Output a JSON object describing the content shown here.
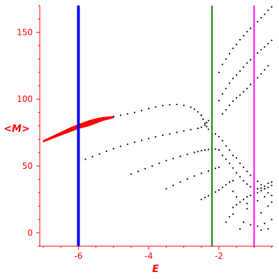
{
  "chart_data": {
    "type": "scatter",
    "xlabel": "E",
    "ylabel": "<M>",
    "xlim": [
      -7.1,
      -0.45
    ],
    "ylim": [
      -10,
      170
    ],
    "x_ticks": [
      {
        "value": -6,
        "label": "-6"
      },
      {
        "value": -4,
        "label": "-4"
      },
      {
        "value": -2,
        "label": "-2"
      }
    ],
    "y_ticks": [
      {
        "value": 0,
        "label": "0"
      },
      {
        "value": 50,
        "label": "50"
      },
      {
        "value": 100,
        "label": "100"
      },
      {
        "value": 150,
        "label": "150"
      }
    ],
    "colors": {
      "axis": "#ff0000",
      "points": "#000000",
      "dense_band": "#ff0000",
      "line_1": "#0000ff",
      "line_2": "#008000",
      "line_3": "#ff00ff"
    },
    "vertical_lines": [
      {
        "x": -6.0,
        "color": "#0000ff",
        "width": 4
      },
      {
        "x": -2.2,
        "color": "#008000",
        "width": 2
      },
      {
        "x": -1.0,
        "color": "#ff00ff",
        "width": 2
      }
    ],
    "dense_band": {
      "color": "#ff0000",
      "upper": [
        [
          -7.0,
          69
        ],
        [
          -6.6,
          74
        ],
        [
          -6.2,
          79
        ],
        [
          -6.0,
          81
        ],
        [
          -5.7,
          84
        ],
        [
          -5.4,
          86
        ],
        [
          -5.1,
          87
        ],
        [
          -5.0,
          87
        ]
      ],
      "lower": [
        [
          -5.0,
          86
        ],
        [
          -5.3,
          84
        ],
        [
          -5.7,
          80
        ],
        [
          -6.0,
          78
        ],
        [
          -6.3,
          75
        ],
        [
          -6.6,
          72
        ],
        [
          -7.0,
          68
        ]
      ]
    },
    "series": [
      {
        "color": "#000000",
        "points": [
          [
            -5.0,
            87
          ],
          [
            -4.8,
            88
          ],
          [
            -4.6,
            89
          ],
          [
            -4.4,
            90
          ],
          [
            -4.2,
            91.5
          ],
          [
            -4.0,
            93
          ],
          [
            -3.8,
            94.2
          ],
          [
            -3.6,
            95.2
          ],
          [
            -3.4,
            95.8
          ],
          [
            -3.2,
            96
          ],
          [
            -3.0,
            95.3
          ],
          [
            -2.8,
            94
          ],
          [
            -2.7,
            92.5
          ],
          [
            -2.6,
            90.5
          ],
          [
            -2.5,
            88
          ],
          [
            -2.45,
            85
          ],
          [
            -2.4,
            82
          ],
          [
            -2.35,
            79.5
          ],
          [
            -2.3,
            77.5
          ]
        ]
      },
      {
        "color": "#000000",
        "points": [
          [
            -5.8,
            55
          ],
          [
            -5.6,
            57
          ],
          [
            -5.4,
            59
          ],
          [
            -5.2,
            61
          ],
          [
            -5.0,
            63
          ],
          [
            -4.8,
            64.7
          ],
          [
            -4.6,
            66.3
          ],
          [
            -4.4,
            67.8
          ],
          [
            -4.2,
            69.2
          ],
          [
            -4.0,
            70.5
          ],
          [
            -3.8,
            71.8
          ],
          [
            -3.6,
            73
          ],
          [
            -3.4,
            74.1
          ],
          [
            -3.2,
            75.2
          ],
          [
            -3.0,
            76.2
          ],
          [
            -2.8,
            77.2
          ],
          [
            -2.6,
            78.2
          ],
          [
            -2.5,
            79
          ],
          [
            -2.4,
            80.5
          ],
          [
            -2.35,
            82.5
          ]
        ]
      },
      {
        "color": "#000000",
        "points": [
          [
            -4.5,
            44
          ],
          [
            -4.3,
            46
          ],
          [
            -4.1,
            48
          ],
          [
            -3.9,
            50
          ],
          [
            -3.7,
            52
          ],
          [
            -3.5,
            54
          ],
          [
            -3.3,
            55.6
          ],
          [
            -3.1,
            57.2
          ],
          [
            -2.9,
            58.7
          ],
          [
            -2.7,
            60.1
          ],
          [
            -2.6,
            60.8
          ],
          [
            -2.5,
            61.5
          ],
          [
            -2.4,
            62
          ],
          [
            -2.3,
            62.3
          ],
          [
            -2.2,
            62.5
          ],
          [
            -2.1,
            62.6
          ],
          [
            -2.0,
            62
          ]
        ]
      },
      {
        "color": "#000000",
        "points": [
          [
            -3.5,
            33
          ],
          [
            -3.3,
            35.5
          ],
          [
            -3.1,
            38
          ],
          [
            -2.9,
            40.3
          ],
          [
            -2.7,
            42.5
          ],
          [
            -2.5,
            44.5
          ],
          [
            -2.3,
            46.3
          ],
          [
            -2.2,
            47.2
          ],
          [
            -2.1,
            48.2
          ],
          [
            -2.0,
            49
          ]
        ]
      },
      {
        "color": "#000000",
        "points": [
          [
            -2.5,
            25
          ],
          [
            -2.4,
            26.5
          ],
          [
            -2.3,
            27.8
          ],
          [
            -2.2,
            29
          ],
          [
            -2.1,
            30.5
          ],
          [
            -2.0,
            32
          ],
          [
            -1.9,
            34
          ],
          [
            -1.8,
            36
          ],
          [
            -1.7,
            38
          ],
          [
            -1.6,
            39
          ]
        ]
      },
      {
        "color": "#000000",
        "points": [
          [
            -2.0,
            62
          ],
          [
            -1.9,
            58
          ],
          [
            -1.8,
            55
          ],
          [
            -1.7,
            52
          ],
          [
            -1.6,
            48.5
          ],
          [
            -1.5,
            45
          ],
          [
            -1.4,
            42
          ],
          [
            -1.3,
            39
          ],
          [
            -1.2,
            36.5
          ],
          [
            -1.1,
            34.5
          ],
          [
            -1.0,
            33.5
          ],
          [
            -0.9,
            33
          ],
          [
            -0.8,
            33.5
          ],
          [
            -0.7,
            35
          ],
          [
            -0.6,
            37
          ],
          [
            -0.5,
            38
          ]
        ]
      },
      {
        "color": "#000000",
        "points": [
          [
            -1.6,
            19
          ],
          [
            -1.5,
            21
          ],
          [
            -1.4,
            23
          ],
          [
            -1.3,
            25
          ],
          [
            -1.2,
            27
          ],
          [
            -1.1,
            28
          ],
          [
            -1.0,
            29.5
          ],
          [
            -0.9,
            30
          ],
          [
            -0.8,
            31.5
          ],
          [
            -0.7,
            33
          ],
          [
            -0.6,
            34
          ],
          [
            -0.5,
            35.5
          ]
        ]
      },
      {
        "color": "#000000",
        "points": [
          [
            -2.0,
            120
          ],
          [
            -1.9,
            126
          ],
          [
            -1.8,
            130
          ],
          [
            -1.7,
            134
          ],
          [
            -1.6,
            138
          ],
          [
            -1.5,
            141
          ],
          [
            -1.4,
            144.5
          ],
          [
            -1.3,
            147.5
          ],
          [
            -1.2,
            150.5
          ],
          [
            -1.1,
            153
          ],
          [
            -1.0,
            155.5
          ],
          [
            -0.9,
            158
          ],
          [
            -0.8,
            161
          ],
          [
            -0.7,
            163.5
          ],
          [
            -0.6,
            166.5
          ],
          [
            -0.5,
            169
          ]
        ]
      },
      {
        "color": "#000000",
        "points": [
          [
            -2.0,
            99
          ],
          [
            -1.9,
            104
          ],
          [
            -1.8,
            108
          ],
          [
            -1.7,
            112
          ],
          [
            -1.6,
            115.5
          ],
          [
            -1.5,
            118
          ],
          [
            -1.4,
            121
          ],
          [
            -1.3,
            124
          ],
          [
            -1.2,
            127
          ],
          [
            -1.1,
            129.5
          ],
          [
            -1.0,
            132
          ],
          [
            -0.9,
            134.5
          ],
          [
            -0.8,
            137
          ],
          [
            -0.7,
            139
          ],
          [
            -0.6,
            141.5
          ],
          [
            -0.5,
            144
          ]
        ]
      },
      {
        "color": "#000000",
        "points": [
          [
            -1.9,
            89
          ],
          [
            -1.8,
            92
          ],
          [
            -1.7,
            95.5
          ],
          [
            -1.6,
            98.5
          ],
          [
            -1.5,
            101
          ],
          [
            -1.4,
            103
          ],
          [
            -1.3,
            105.5
          ],
          [
            -1.2,
            108
          ],
          [
            -1.1,
            111
          ],
          [
            -1.0,
            113.5
          ],
          [
            -0.9,
            116
          ],
          [
            -0.8,
            119
          ],
          [
            -0.7,
            122
          ],
          [
            -0.6,
            125
          ]
        ]
      },
      {
        "color": "#000000",
        "points": [
          [
            -2.5,
            88
          ],
          [
            -2.3,
            84
          ],
          [
            -2.2,
            79
          ],
          [
            -2.1,
            74
          ],
          [
            -2.0,
            72
          ],
          [
            -1.9,
            69
          ],
          [
            -1.8,
            65
          ],
          [
            -1.7,
            62
          ],
          [
            -1.6,
            58
          ],
          [
            -1.5,
            56
          ],
          [
            -1.4,
            52
          ],
          [
            -1.3,
            49
          ],
          [
            -1.2,
            46
          ],
          [
            -1.1,
            43
          ],
          [
            -1.0,
            41
          ],
          [
            -0.9,
            38.5
          ],
          [
            -0.8,
            36
          ],
          [
            -0.7,
            33
          ],
          [
            -0.6,
            30
          ],
          [
            -0.5,
            28
          ]
        ]
      },
      {
        "color": "#000000",
        "points": [
          [
            -1.8,
            8
          ],
          [
            -1.7,
            12
          ],
          [
            -1.6,
            14
          ],
          [
            -1.4,
            3
          ],
          [
            -1.3,
            8
          ],
          [
            -1.2,
            18
          ],
          [
            -1.1,
            6
          ],
          [
            -1.0,
            12
          ],
          [
            -0.9,
            5
          ],
          [
            -0.8,
            15
          ],
          [
            -0.7,
            7
          ],
          [
            -0.6,
            20
          ],
          [
            -0.5,
            10
          ],
          [
            -0.6,
            3
          ],
          [
            -0.8,
            2
          ],
          [
            -1.6,
            31
          ],
          [
            -1.5,
            27
          ],
          [
            -1.2,
            22
          ],
          [
            -0.9,
            24
          ],
          [
            -0.7,
            27
          ],
          [
            -0.5,
            23
          ]
        ]
      }
    ]
  }
}
